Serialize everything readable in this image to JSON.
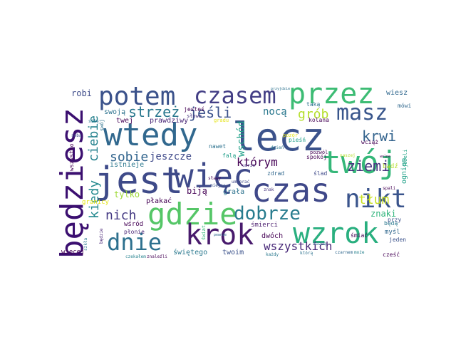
{
  "cloud": {
    "words": [
      {
        "text": "wtedy",
        "color": "#31688e"
      },
      {
        "text": "lecz",
        "color": "#3b528b"
      },
      {
        "text": "jest",
        "color": "#3e4a89"
      },
      {
        "text": "więc",
        "color": "#3e4989"
      },
      {
        "text": "czas",
        "color": "#3f4889"
      },
      {
        "text": "będziesz",
        "color": "#3b0f70"
      },
      {
        "text": "gdzie",
        "color": "#55c667"
      },
      {
        "text": "twój",
        "color": "#35b779"
      },
      {
        "text": "przez",
        "color": "#3dbc74"
      },
      {
        "text": "potem",
        "color": "#3b528b"
      },
      {
        "text": "czasem",
        "color": "#433e85"
      },
      {
        "text": "krok",
        "color": "#481a6c"
      },
      {
        "text": "wzrok",
        "color": "#29af7f"
      },
      {
        "text": "masz",
        "color": "#39568c"
      },
      {
        "text": "nikt",
        "color": "#3a548c"
      },
      {
        "text": "dnie",
        "color": "#2d708e"
      },
      {
        "text": "dobrze",
        "color": "#287c8e"
      },
      {
        "text": "wszystkich",
        "color": "#482878"
      },
      {
        "text": "strzeż",
        "color": "#2a788e"
      },
      {
        "text": "jeśli",
        "color": "#3b528b"
      },
      {
        "text": "krwi",
        "color": "#33638d"
      },
      {
        "text": "ziemi",
        "color": "#46337e"
      },
      {
        "text": "grób",
        "color": "#b5de2b"
      },
      {
        "text": "ciebie",
        "color": "#26828e"
      },
      {
        "text": "sobie",
        "color": "#32658e"
      },
      {
        "text": "kiedy",
        "color": "#23898e"
      },
      {
        "text": "którym",
        "color": "#440154"
      },
      {
        "text": "nich",
        "color": "#443983"
      },
      {
        "text": "tłum",
        "color": "#c8e020"
      },
      {
        "text": "nocą",
        "color": "#2a788e"
      },
      {
        "text": "wschód",
        "color": "#1fa188"
      },
      {
        "text": "jeszcze",
        "color": "#3e4989"
      },
      {
        "text": "robi",
        "color": "#3e4c8a"
      },
      {
        "text": "wiesz",
        "color": "#31688e"
      },
      {
        "text": "swoją",
        "color": "#2c728e"
      },
      {
        "text": "twej",
        "color": "#440154"
      },
      {
        "text": "prawdziwy",
        "color": "#482475"
      },
      {
        "text": "jesteś",
        "color": "#440154"
      },
      {
        "text": "słowa",
        "color": "#46337e"
      },
      {
        "text": "gradu",
        "color": "#e5e419"
      },
      {
        "text": "taką",
        "color": "#2c728e"
      },
      {
        "text": "mówi",
        "color": "#31688e"
      },
      {
        "text": "wszystko",
        "color": "#440154"
      },
      {
        "text": "istnieje",
        "color": "#2a788e"
      },
      {
        "text": "tylko",
        "color": "#a0da39"
      },
      {
        "text": "biją",
        "color": "#440154"
      },
      {
        "text": "grała",
        "color": "#2c728e"
      },
      {
        "text": "płakać",
        "color": "#440154"
      },
      {
        "text": "znaki",
        "color": "#2fb47c"
      },
      {
        "text": "śmiać",
        "color": "#440154"
      },
      {
        "text": "ogniem",
        "color": "#1fa188"
      },
      {
        "text": "spokój",
        "color": "#440154"
      },
      {
        "text": "zdrad",
        "color": "#31688e"
      },
      {
        "text": "ślad",
        "color": "#3e4989"
      },
      {
        "text": "kolana",
        "color": "#440154"
      },
      {
        "text": "pieśń",
        "color": "#1f9e89"
      },
      {
        "text": "wciąż",
        "color": "#440154"
      },
      {
        "text": "będą",
        "color": "#2a788e"
      },
      {
        "text": "przy",
        "color": "#3b528b"
      },
      {
        "text": "myśl",
        "color": "#31688e"
      },
      {
        "text": "jeden",
        "color": "#3b528b"
      },
      {
        "text": "granicy",
        "color": "#e5e419"
      },
      {
        "text": "wśród",
        "color": "#440154"
      },
      {
        "text": "płonie",
        "color": "#482475"
      },
      {
        "text": "więcej",
        "color": "#440154"
      },
      {
        "text": "świętego",
        "color": "#2a788e"
      },
      {
        "text": "twoim",
        "color": "#3b528b"
      },
      {
        "text": "dwóch",
        "color": "#440154"
      },
      {
        "text": "śmierci",
        "color": "#481a6c"
      },
      {
        "text": "cześć",
        "color": "#440154"
      },
      {
        "text": "nawet",
        "color": "#2c728e"
      },
      {
        "text": "falą",
        "color": "#1f9e89"
      },
      {
        "text": "pozór",
        "color": "#e5e419"
      },
      {
        "text": "pozwól",
        "color": "#440154"
      },
      {
        "text": "bądź",
        "color": "#b5de2b"
      },
      {
        "text": "jeżeli",
        "color": "#20a486"
      },
      {
        "text": "czekałem",
        "color": "#26828e"
      },
      {
        "text": "znaleźli",
        "color": "#440154"
      },
      {
        "text": "którą",
        "color": "#2c728e"
      },
      {
        "text": "każdy",
        "color": "#2a788e"
      },
      {
        "text": "czarnem",
        "color": "#31688e"
      },
      {
        "text": "może",
        "color": "#26828e"
      },
      {
        "text": "sobą",
        "color": "#3e4989"
      },
      {
        "text": "siłę",
        "color": "#2c728e"
      },
      {
        "text": "swój",
        "color": "#2c728e"
      },
      {
        "text": "szkła",
        "color": "#2a788e"
      },
      {
        "text": "spali",
        "color": "#440154"
      },
      {
        "text": "umrze",
        "color": "#46337e"
      },
      {
        "text": "sławy",
        "color": "#440154"
      },
      {
        "text": "umierać",
        "color": "#3e4989"
      },
      {
        "text": "przyjdzie",
        "color": "#2c728e"
      },
      {
        "text": "każdą",
        "color": "#31688e"
      },
      {
        "text": "świat",
        "color": "#35b779"
      },
      {
        "text": "miejsc",
        "color": "#3b528b"
      },
      {
        "text": "naszej",
        "color": "#b5de2b"
      },
      {
        "text": "będzie",
        "color": "#482475"
      },
      {
        "text": "dzień",
        "color": "#2a788e"
      },
      {
        "text": "znak",
        "color": "#46337e"
      },
      {
        "text": "wolne",
        "color": "#440154"
      },
      {
        "text": "pewnie",
        "color": "#31688e"
      }
    ]
  }
}
